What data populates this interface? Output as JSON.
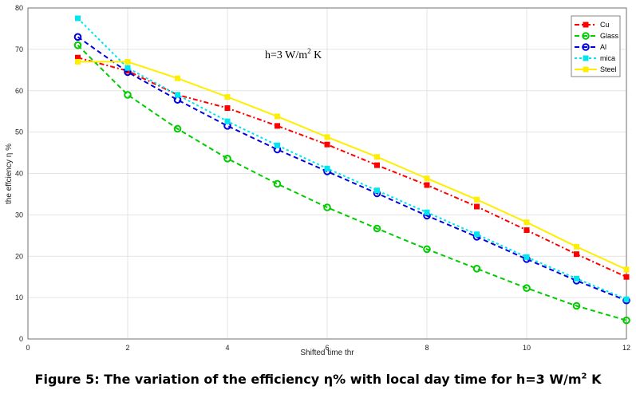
{
  "chart_data": {
    "type": "line",
    "title": "",
    "xlabel": "Shifted time thr",
    "ylabel": "the effciency η %",
    "xlim": [
      0,
      12
    ],
    "ylim": [
      0,
      80
    ],
    "xticks": [
      0,
      2,
      4,
      6,
      8,
      10,
      12
    ],
    "yticks": [
      0,
      10,
      20,
      30,
      40,
      50,
      60,
      70,
      80
    ],
    "grid": true,
    "legend_position": "top-right",
    "annotation": {
      "main": "h=3 W/m",
      "sup": "2",
      "tail": " K"
    },
    "x": [
      1,
      2,
      3,
      4,
      5,
      6,
      7,
      8,
      9,
      10,
      11,
      12
    ],
    "series": [
      {
        "name": "Cu",
        "color": "#ff0000",
        "marker": "square",
        "dash": "6,3,2,3",
        "values": [
          68,
          64.8,
          59,
          55.8,
          51.5,
          47,
          42,
          37.2,
          32,
          26.3,
          20.5,
          15
        ]
      },
      {
        "name": "Glass",
        "color": "#00cc00",
        "marker": "circle-open",
        "dash": "6,4",
        "values": [
          71,
          59,
          50.8,
          43.6,
          37.5,
          31.8,
          26.7,
          21.7,
          17,
          12.3,
          8,
          4.5
        ]
      },
      {
        "name": "Al",
        "color": "#0000dd",
        "marker": "circle-open",
        "dash": "6,4",
        "values": [
          73,
          64.5,
          57.8,
          51.5,
          45.8,
          40.5,
          35.2,
          29.8,
          24.7,
          19.3,
          14.1,
          9.3
        ]
      },
      {
        "name": "mica",
        "color": "#00e5ee",
        "marker": "square",
        "dash": "3,3",
        "values": [
          77.5,
          65.5,
          59,
          52.6,
          46.8,
          41.2,
          35.9,
          30.6,
          25.3,
          19.8,
          14.6,
          9.6
        ]
      },
      {
        "name": "Steel",
        "color": "#ffee00",
        "marker": "square",
        "dash": "",
        "values": [
          67,
          67,
          63,
          58.5,
          53.8,
          48.8,
          44,
          38.8,
          33.7,
          28.2,
          22.3,
          16.8
        ]
      }
    ]
  },
  "caption": {
    "main": "Figure 5: The variation of the efficiency η% with local day time for h=3 W/m",
    "sup": "2",
    "tail": " K"
  }
}
